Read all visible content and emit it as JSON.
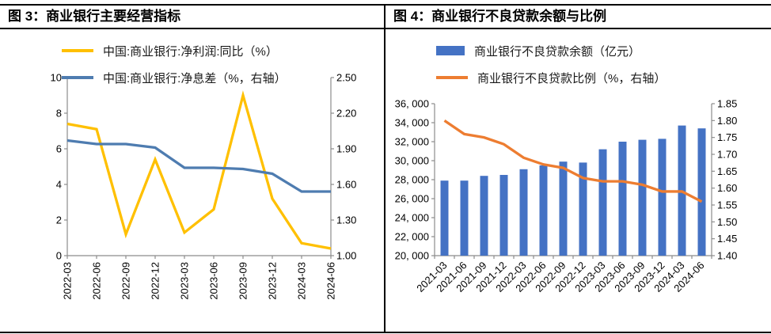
{
  "chart_data": [
    {
      "type": "line",
      "title": "图 3：商业银行主要经营指标",
      "legend_position": "top-left",
      "grid": false,
      "categories": [
        "2022-03",
        "2022-06",
        "2022-09",
        "2022-12",
        "2023-03",
        "2023-06",
        "2023-09",
        "2023-12",
        "2024-03",
        "2024-06"
      ],
      "series": [
        {
          "name": "中国:商业银行:净利润:同比（%）",
          "type": "line",
          "axis": "left",
          "color": "#FFC000",
          "values": [
            7.4,
            7.1,
            1.2,
            5.4,
            1.3,
            2.6,
            9.0,
            3.2,
            0.7,
            0.4
          ]
        },
        {
          "name": "中国:商业银行:净息差（%，右轴）",
          "type": "line",
          "axis": "right",
          "color": "#4E7CB0",
          "values": [
            1.97,
            1.94,
            1.94,
            1.91,
            1.74,
            1.74,
            1.73,
            1.69,
            1.54,
            1.54
          ]
        }
      ],
      "left_axis": {
        "min": 0,
        "max": 10,
        "ticks": [
          {
            "v": 0,
            "label": "0"
          },
          {
            "v": 2,
            "label": "2"
          },
          {
            "v": 4,
            "label": "4"
          },
          {
            "v": 6,
            "label": "6"
          },
          {
            "v": 8,
            "label": "8"
          },
          {
            "v": 10,
            "label": "10"
          }
        ]
      },
      "right_axis": {
        "min": 1.0,
        "max": 2.5,
        "ticks": [
          {
            "v": 1.0,
            "label": "1.00"
          },
          {
            "v": 1.3,
            "label": "1.30"
          },
          {
            "v": 1.6,
            "label": "1.60"
          },
          {
            "v": 1.9,
            "label": "1.90"
          },
          {
            "v": 2.2,
            "label": "2.20"
          },
          {
            "v": 2.5,
            "label": "2.50"
          }
        ]
      }
    },
    {
      "type": "bar",
      "title": "图 4：商业银行不良贷款余额与比例",
      "legend_position": "top-left",
      "grid": false,
      "categories": [
        "2021-03",
        "2021-06",
        "2021-09",
        "2021-12",
        "2022-03",
        "2022-06",
        "2022-09",
        "2022-12",
        "2023-03",
        "2023-06",
        "2023-09",
        "2023-12",
        "2024-03",
        "2024-06"
      ],
      "series": [
        {
          "name": "商业银行不良贷款余额（亿元）",
          "type": "bar",
          "axis": "left",
          "color": "#4472C4",
          "values": [
            27900,
            27900,
            28400,
            28500,
            29100,
            29500,
            29900,
            29800,
            31200,
            32000,
            32200,
            32300,
            33700,
            33400
          ]
        },
        {
          "name": "商业银行不良贷款比例（%，右轴）",
          "type": "line",
          "axis": "right",
          "color": "#ED7D31",
          "values": [
            1.8,
            1.76,
            1.75,
            1.73,
            1.69,
            1.67,
            1.66,
            1.63,
            1.62,
            1.62,
            1.61,
            1.59,
            1.59,
            1.56
          ]
        }
      ],
      "left_axis": {
        "min": 20000,
        "max": 36000,
        "ticks": [
          {
            "v": 20000,
            "label": "20, 000"
          },
          {
            "v": 22000,
            "label": "22, 000"
          },
          {
            "v": 24000,
            "label": "24, 000"
          },
          {
            "v": 26000,
            "label": "26, 000"
          },
          {
            "v": 28000,
            "label": "28, 000"
          },
          {
            "v": 30000,
            "label": "30, 000"
          },
          {
            "v": 32000,
            "label": "32, 000"
          },
          {
            "v": 34000,
            "label": "34, 000"
          },
          {
            "v": 36000,
            "label": "36, 000"
          }
        ]
      },
      "right_axis": {
        "min": 1.4,
        "max": 1.85,
        "ticks": [
          {
            "v": 1.4,
            "label": "1.40"
          },
          {
            "v": 1.45,
            "label": "1.45"
          },
          {
            "v": 1.5,
            "label": "1.50"
          },
          {
            "v": 1.55,
            "label": "1.55"
          },
          {
            "v": 1.6,
            "label": "1.60"
          },
          {
            "v": 1.65,
            "label": "1.65"
          },
          {
            "v": 1.7,
            "label": "1.70"
          },
          {
            "v": 1.75,
            "label": "1.75"
          },
          {
            "v": 1.8,
            "label": "1.80"
          },
          {
            "v": 1.85,
            "label": "1.85"
          }
        ]
      }
    }
  ]
}
